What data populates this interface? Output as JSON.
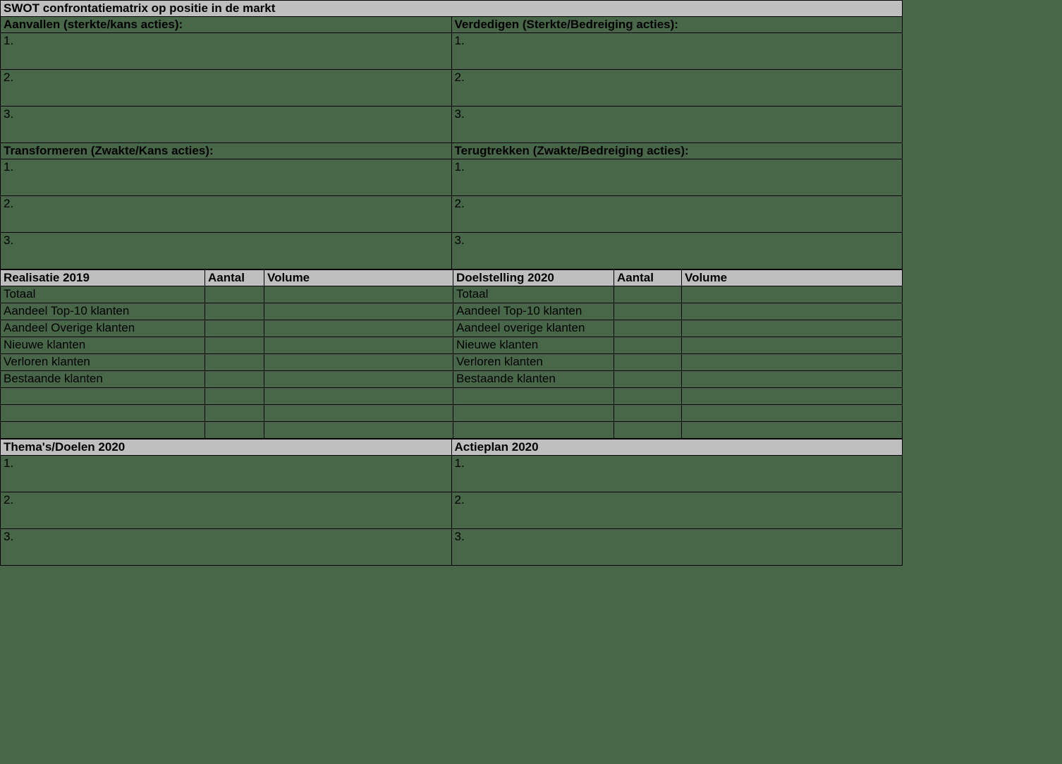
{
  "colors": {
    "header_bg": "#bfbfbf",
    "body_bg": "#486749",
    "border": "#000000",
    "text": "#000000"
  },
  "swot": {
    "title": "SWOT confrontatiematrix op positie in de markt",
    "q1": {
      "heading": "Aanvallen (sterkte/kans acties):",
      "items": [
        "1.",
        "2.",
        "3."
      ]
    },
    "q2": {
      "heading": "Verdedigen (Sterkte/Bedreiging acties):",
      "items": [
        "1.",
        "2.",
        "3."
      ]
    },
    "q3": {
      "heading": "Transformeren (Zwakte/Kans acties):",
      "items": [
        "1.",
        "2.",
        "3."
      ]
    },
    "q4": {
      "heading": "Terugtrekken (Zwakte/Bedreiging acties):",
      "items": [
        "1.",
        "2.",
        "3."
      ]
    }
  },
  "realisatie": {
    "title": "Realisatie 2019",
    "col_aantal": "Aantal",
    "col_volume": "Volume",
    "rows": [
      {
        "label": "Totaal",
        "aantal": "",
        "volume": ""
      },
      {
        "label": "Aandeel Top-10 klanten",
        "aantal": "",
        "volume": ""
      },
      {
        "label": "Aandeel Overige klanten",
        "aantal": "",
        "volume": ""
      },
      {
        "label": "Nieuwe klanten",
        "aantal": "",
        "volume": ""
      },
      {
        "label": "Verloren klanten",
        "aantal": "",
        "volume": ""
      },
      {
        "label": "Bestaande klanten",
        "aantal": "",
        "volume": ""
      },
      {
        "label": "",
        "aantal": "",
        "volume": ""
      },
      {
        "label": "",
        "aantal": "",
        "volume": ""
      },
      {
        "label": "",
        "aantal": "",
        "volume": ""
      }
    ]
  },
  "doelstelling": {
    "title": "Doelstelling  2020",
    "col_aantal": "Aantal",
    "col_volume": "Volume",
    "rows": [
      {
        "label": "Totaal",
        "aantal": "",
        "volume": ""
      },
      {
        "label": "Aandeel Top-10 klanten",
        "aantal": "",
        "volume": ""
      },
      {
        "label": "Aandeel overige klanten",
        "aantal": "",
        "volume": ""
      },
      {
        "label": "Nieuwe klanten",
        "aantal": "",
        "volume": ""
      },
      {
        "label": "Verloren klanten",
        "aantal": "",
        "volume": ""
      },
      {
        "label": "Bestaande klanten",
        "aantal": "",
        "volume": ""
      },
      {
        "label": "",
        "aantal": "",
        "volume": ""
      },
      {
        "label": "",
        "aantal": "",
        "volume": ""
      },
      {
        "label": "",
        "aantal": "",
        "volume": ""
      }
    ]
  },
  "themas": {
    "title": "Thema's/Doelen 2020",
    "items": [
      "1.",
      "2.",
      "3."
    ]
  },
  "actieplan": {
    "title": "Actieplan 2020",
    "items": [
      "1.",
      "2.",
      "3."
    ]
  }
}
